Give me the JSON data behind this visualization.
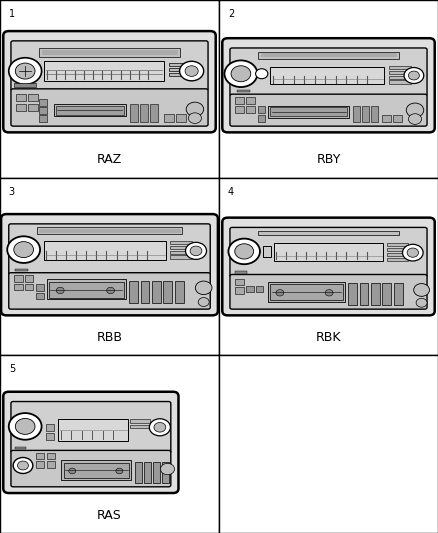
{
  "background_color": "#ffffff",
  "grid_color": "#000000",
  "cells": [
    {
      "num": "1",
      "label": "RAZ",
      "has_radio": true
    },
    {
      "num": "2",
      "label": "RBY",
      "has_radio": true
    },
    {
      "num": "3",
      "label": "RBB",
      "has_radio": true
    },
    {
      "num": "4",
      "label": "RBK",
      "has_radio": true
    },
    {
      "num": "5",
      "label": "RAS",
      "has_radio": true
    },
    {
      "num": "",
      "label": "",
      "has_radio": false
    }
  ],
  "num_fontsize": 7,
  "label_fontsize": 9,
  "lw_outer": 1.8,
  "lw_inner": 1.0,
  "lw_thin": 0.6,
  "radio_face": "#1a1a1a",
  "radio_light": "#e8e8e8",
  "radio_mid": "#aaaaaa",
  "radio_dark": "#555555",
  "display_face": "#cccccc",
  "knob_face": "#f5f5f5"
}
